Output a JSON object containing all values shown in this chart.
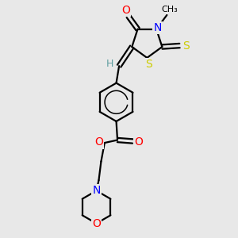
{
  "bg_color": "#e8e8e8",
  "bond_color": "#000000",
  "bond_width": 1.6,
  "atom_colors": {
    "C": "#000000",
    "H": "#5f9ea0",
    "N": "#0000ff",
    "O": "#ff0000",
    "S": "#cccc00"
  },
  "font_size": 9,
  "fig_size": [
    3.0,
    3.0
  ],
  "dpi": 100,
  "xlim": [
    0,
    10
  ],
  "ylim": [
    0,
    10
  ]
}
